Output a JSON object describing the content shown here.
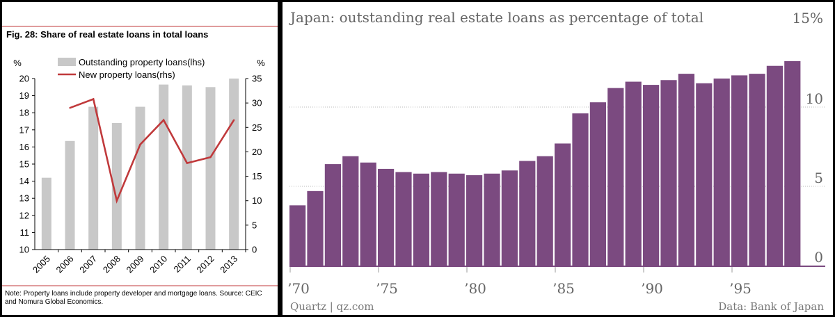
{
  "chart_data": [
    {
      "type": "bar+line",
      "title": "Fig. 28: Share of real estate loans in total loans",
      "categories": [
        "2005",
        "2006",
        "2007",
        "2008",
        "2009",
        "2010",
        "2011",
        "2012",
        "2013"
      ],
      "series": [
        {
          "name": "Outstanding property loans(lhs)",
          "type": "bar",
          "axis": "left",
          "color": "#c8c8c8",
          "values": [
            14.2,
            16.35,
            18.35,
            17.4,
            18.35,
            19.65,
            19.6,
            19.5,
            20.0
          ]
        },
        {
          "name": "New property loans(rhs)",
          "type": "line",
          "axis": "right",
          "color": "#c0393b",
          "values": [
            null,
            29.0,
            30.8,
            10.0,
            21.5,
            26.5,
            17.7,
            18.9,
            26.5
          ]
        }
      ],
      "left_axis": {
        "unit": "%",
        "ticks": [
          "10",
          "11",
          "12",
          "13",
          "14",
          "15",
          "16",
          "17",
          "18",
          "19",
          "20"
        ],
        "ylim": [
          10,
          20
        ]
      },
      "right_axis": {
        "unit": "%",
        "ticks": [
          "0",
          "5",
          "10",
          "15",
          "20",
          "25",
          "30",
          "35"
        ],
        "ylim": [
          0,
          35
        ]
      },
      "legend_placement": "top",
      "note_lines": [
        "Note: Property loans include property developer and mortgage loans. Source: CEIC",
        "and Nomura Global Economics."
      ]
    },
    {
      "type": "bar",
      "title": "Japan: outstanding real estate loans as percentage of total",
      "x": [
        1970,
        1971,
        1972,
        1973,
        1974,
        1975,
        1976,
        1977,
        1978,
        1979,
        1980,
        1981,
        1982,
        1983,
        1984,
        1985,
        1986,
        1987,
        1988,
        1989,
        1990,
        1991,
        1992,
        1993,
        1994,
        1995,
        1996,
        1997,
        1998
      ],
      "values": [
        3.8,
        4.7,
        6.4,
        6.9,
        6.5,
        6.1,
        5.9,
        5.8,
        5.9,
        5.8,
        5.7,
        5.8,
        6.0,
        6.6,
        6.9,
        7.7,
        9.6,
        10.3,
        11.2,
        11.6,
        11.4,
        11.7,
        12.1,
        11.5,
        11.8,
        12.0,
        12.1,
        12.6,
        12.9
      ],
      "color": "#7b4a80",
      "ylim": [
        0,
        15
      ],
      "y_ticks": [
        "0",
        "5",
        "10",
        "15%"
      ],
      "x_ticks": [
        {
          "year": 1970,
          "label": "’70"
        },
        {
          "year": 1975,
          "label": "’75"
        },
        {
          "year": 1980,
          "label": "’80"
        },
        {
          "year": 1985,
          "label": "’85"
        },
        {
          "year": 1990,
          "label": "’90"
        },
        {
          "year": 1995,
          "label": "’95"
        }
      ],
      "grid": true,
      "footer_left": "Quartz | qz.com",
      "footer_right": "Data: Bank of Japan"
    }
  ]
}
